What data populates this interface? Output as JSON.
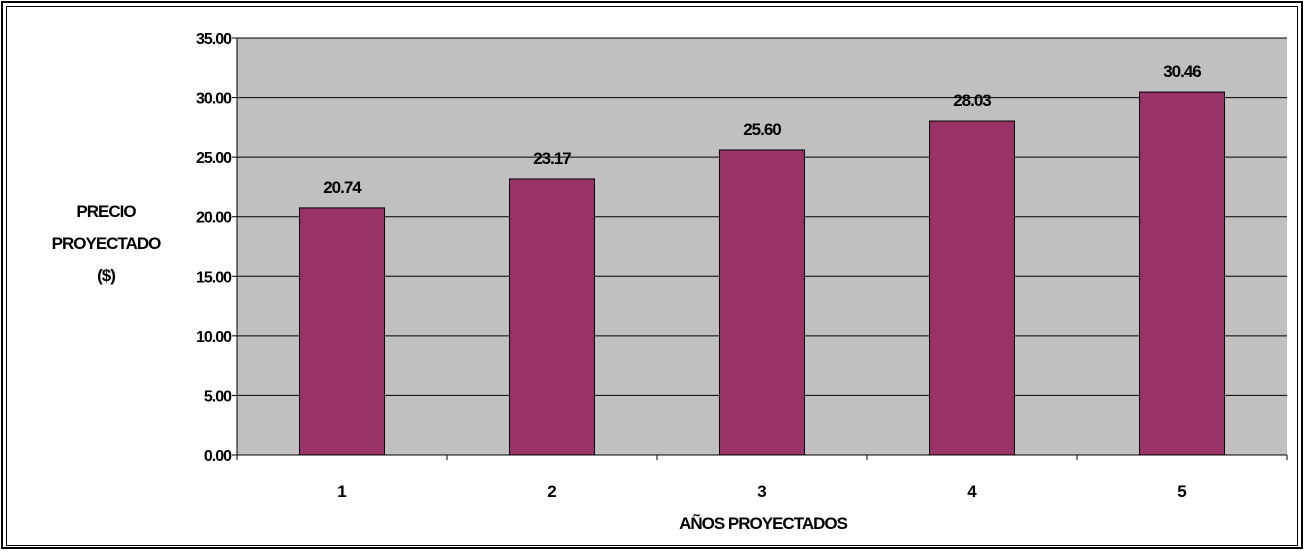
{
  "chart_data": {
    "type": "bar",
    "categories": [
      "1",
      "2",
      "3",
      "4",
      "5"
    ],
    "values": [
      20.74,
      23.17,
      25.6,
      28.03,
      30.46
    ],
    "data_labels": [
      "20.74",
      "23.17",
      "25.60",
      "28.03",
      "30.46"
    ],
    "ylabel_lines": [
      "PRECIO",
      "PROYECTADO",
      "($)"
    ],
    "xlabel": "AÑOS PROYECTADOS",
    "ylim": [
      0,
      35
    ],
    "yticks": [
      "0.00",
      "5.00",
      "10.00",
      "15.00",
      "20.00",
      "25.00",
      "30.00",
      "35.00"
    ],
    "grid": "horizontal",
    "legend": "none",
    "colors": {
      "bar": "#993366",
      "plot_background": "#c0c0c0",
      "frame": "#000000"
    }
  }
}
